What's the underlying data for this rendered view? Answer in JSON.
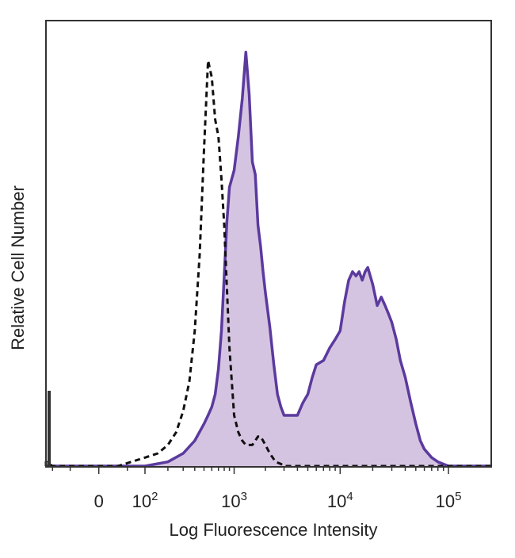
{
  "chart_data": {
    "type": "area",
    "title": "",
    "xlabel": "Log Fluorescence Intensity",
    "ylabel": "Relative Cell Number",
    "x_scale": "biexponential",
    "x_ticks": [
      {
        "value": 0,
        "label": "0",
        "exp": ""
      },
      {
        "value": 100,
        "label": "10",
        "exp": "2"
      },
      {
        "value": 1000,
        "label": "10",
        "exp": "3"
      },
      {
        "value": 10000,
        "label": "10",
        "exp": "4"
      },
      {
        "value": 100000,
        "label": "10",
        "exp": "5"
      }
    ],
    "x_range": [
      -200,
      250000
    ],
    "y_range": [
      0,
      100
    ],
    "grid": false,
    "series": [
      {
        "style": "dashed",
        "color": "#111111",
        "fill": "none",
        "x": [
          -200,
          -150,
          -100,
          -50,
          0,
          30,
          60,
          100,
          150,
          200,
          250,
          300,
          350,
          400,
          450,
          500,
          550,
          600,
          650,
          700,
          750,
          800,
          850,
          900,
          1000,
          1100,
          1200,
          1300,
          1400,
          1500,
          1600,
          1700,
          1800,
          1900,
          2000,
          2200,
          2500,
          2800,
          3000,
          5000,
          10000,
          100000,
          250000
        ],
        "y": [
          0,
          1,
          0,
          0,
          0,
          0,
          1,
          2,
          3,
          5,
          8,
          13,
          20,
          32,
          50,
          75,
          96,
          92,
          82,
          78,
          68,
          57,
          42,
          28,
          12,
          8,
          6,
          5,
          5,
          5,
          6,
          7,
          7,
          6,
          5,
          3,
          1,
          0.5,
          0,
          0,
          0,
          0,
          0
        ]
      },
      {
        "style": "solid",
        "color": "#5b3a9e",
        "fill": "#d5c4e1",
        "x": [
          -200,
          0,
          100,
          200,
          300,
          400,
          500,
          550,
          600,
          650,
          700,
          750,
          800,
          850,
          900,
          1000,
          1100,
          1200,
          1300,
          1400,
          1500,
          1600,
          1700,
          1800,
          1900,
          2000,
          2200,
          2400,
          2600,
          2800,
          3000,
          3300,
          3600,
          4000,
          4500,
          5000,
          5500,
          6000,
          7000,
          8000,
          9000,
          10000,
          11000,
          12000,
          13000,
          14000,
          15000,
          16000,
          17000,
          18000,
          20000,
          22000,
          24000,
          26000,
          28000,
          30000,
          33000,
          36000,
          40000,
          45000,
          50000,
          55000,
          60000,
          70000,
          80000,
          100000,
          250000
        ],
        "y": [
          0,
          0,
          0,
          1,
          3,
          6,
          10,
          12,
          14,
          17,
          23,
          32,
          45,
          58,
          66,
          70,
          78,
          87,
          98,
          88,
          72,
          69,
          57,
          52,
          46,
          41,
          33,
          24,
          17,
          14,
          12,
          12,
          12,
          12,
          15,
          17,
          21,
          24,
          25,
          28,
          30,
          32,
          39,
          44,
          46,
          45,
          46,
          44,
          46,
          47,
          43,
          38,
          40,
          38,
          36,
          34,
          30,
          25,
          21,
          15,
          10,
          6,
          4,
          2,
          1,
          0,
          0
        ]
      }
    ]
  }
}
